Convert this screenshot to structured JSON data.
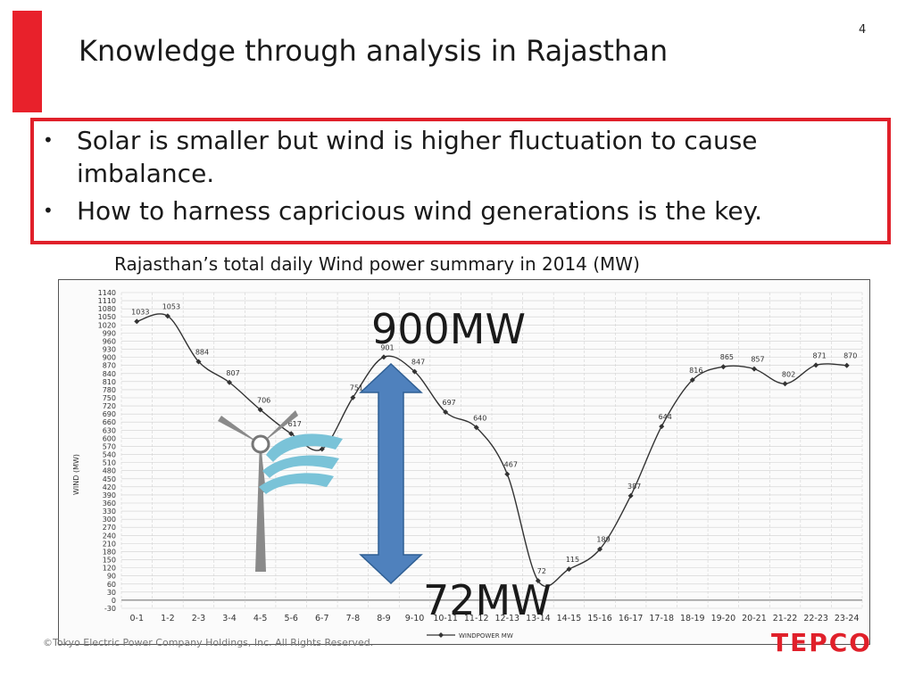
{
  "slide": {
    "page_number": "4",
    "title": "Knowledge through analysis in Rajasthan",
    "bullets": [
      "Solar is smaller but wind is higher fluctuation to cause imbalance.",
      "How to harness capricious wind generations is the key."
    ],
    "bullet_symbol": "•",
    "chart_caption": "Rajasthan’s total daily Wind power summary in 2014 (MW)",
    "copyright": "©Tokyo Electric Power Company Holdings, Inc. All Rights Reserved.",
    "logo_text": "TEPCO",
    "annotation_max": "900MW",
    "annotation_min": "72MW",
    "colors": {
      "accent": "#e8212b",
      "arrow": "#4f81bd",
      "arrow_border": "#2f5f94",
      "wind_icon": "#7ac3d8",
      "turbine": "#888888"
    },
    "icons": [
      "wind-turbine-icon",
      "wind-gust-icon",
      "double-headed-arrow"
    ]
  },
  "chart_data": {
    "type": "line",
    "title": "",
    "xlabel": "",
    "ylabel": "WIND (MW)",
    "legend": "WINDPOWER MW",
    "legend_position": "bottom",
    "grid": true,
    "ylim": [
      -30,
      1140
    ],
    "y_ticks": [
      1140,
      1110,
      1080,
      1050,
      1020,
      990,
      960,
      930,
      900,
      870,
      840,
      810,
      780,
      750,
      720,
      690,
      660,
      630,
      600,
      570,
      540,
      510,
      480,
      450,
      420,
      390,
      360,
      330,
      300,
      270,
      240,
      210,
      180,
      150,
      120,
      90,
      60,
      30,
      0,
      -30
    ],
    "categories": [
      "0-1",
      "1-2",
      "2-3",
      "3-4",
      "4-5",
      "5-6",
      "6-7",
      "7-8",
      "8-9",
      "9-10",
      "10-11",
      "11-12",
      "12-13",
      "13-14",
      "14-15",
      "15-16",
      "16-17",
      "17-18",
      "18-19",
      "19-20",
      "20-21",
      "21-22",
      "22-23",
      "23-24"
    ],
    "series": [
      {
        "name": "WINDPOWER MW",
        "values": [
          1033,
          1053,
          884,
          807,
          706,
          617,
          560,
          751,
          901,
          847,
          697,
          640,
          467,
          72,
          115,
          189,
          387,
          644,
          816,
          865,
          857,
          802,
          871,
          870
        ],
        "labels": [
          "1033",
          "1053",
          "884",
          "807",
          "706",
          "617",
          "",
          "751",
          "901",
          "847",
          "697",
          "640",
          "467",
          "72",
          "115",
          "189",
          "387",
          "644",
          "816",
          "865",
          "857",
          "802",
          "871",
          "870"
        ]
      }
    ]
  }
}
